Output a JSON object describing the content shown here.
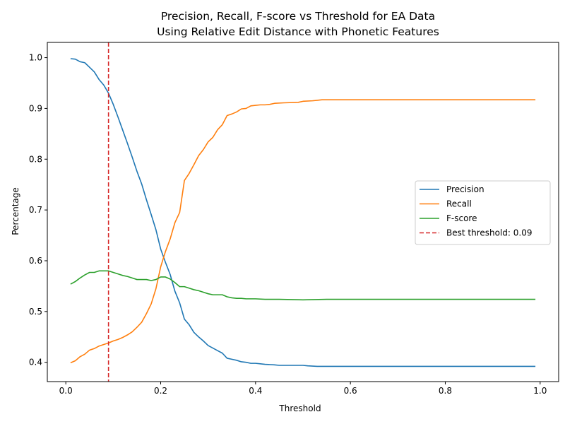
{
  "chart_data": {
    "type": "line",
    "title_line1": "Precision, Recall, F-score vs Threshold for EA Data",
    "title_line2": "Using Relative Edit Distance with Phonetic Features",
    "xlabel": "Threshold",
    "ylabel": "Percentage",
    "xlim": [
      -0.039,
      1.039
    ],
    "ylim": [
      0.362,
      1.03
    ],
    "xticks": [
      0.0,
      0.2,
      0.4,
      0.6,
      0.8,
      1.0
    ],
    "xtick_labels": [
      "0.0",
      "0.2",
      "0.4",
      "0.6",
      "0.8",
      "1.0"
    ],
    "yticks": [
      0.4,
      0.5,
      0.6,
      0.7,
      0.8,
      0.9,
      1.0
    ],
    "ytick_labels": [
      "0.4",
      "0.5",
      "0.6",
      "0.7",
      "0.8",
      "0.9",
      "1.0"
    ],
    "grid": false,
    "legend_position": "center-right",
    "series": [
      {
        "name": "Precision",
        "color": "#1f77b4",
        "points": [
          [
            0.01,
            0.998
          ],
          [
            0.02,
            0.997
          ],
          [
            0.03,
            0.992
          ],
          [
            0.04,
            0.99
          ],
          [
            0.05,
            0.981
          ],
          [
            0.06,
            0.972
          ],
          [
            0.07,
            0.957
          ],
          [
            0.08,
            0.946
          ],
          [
            0.09,
            0.93
          ],
          [
            0.1,
            0.908
          ],
          [
            0.11,
            0.883
          ],
          [
            0.12,
            0.857
          ],
          [
            0.13,
            0.831
          ],
          [
            0.14,
            0.804
          ],
          [
            0.15,
            0.776
          ],
          [
            0.16,
            0.751
          ],
          [
            0.17,
            0.72
          ],
          [
            0.18,
            0.691
          ],
          [
            0.19,
            0.661
          ],
          [
            0.2,
            0.623
          ],
          [
            0.21,
            0.597
          ],
          [
            0.22,
            0.573
          ],
          [
            0.23,
            0.54
          ],
          [
            0.24,
            0.517
          ],
          [
            0.25,
            0.485
          ],
          [
            0.26,
            0.474
          ],
          [
            0.27,
            0.459
          ],
          [
            0.28,
            0.45
          ],
          [
            0.29,
            0.442
          ],
          [
            0.3,
            0.433
          ],
          [
            0.31,
            0.428
          ],
          [
            0.32,
            0.423
          ],
          [
            0.33,
            0.418
          ],
          [
            0.34,
            0.408
          ],
          [
            0.35,
            0.406
          ],
          [
            0.36,
            0.404
          ],
          [
            0.37,
            0.401
          ],
          [
            0.38,
            0.4
          ],
          [
            0.39,
            0.398
          ],
          [
            0.4,
            0.398
          ],
          [
            0.41,
            0.397
          ],
          [
            0.42,
            0.396
          ],
          [
            0.44,
            0.395
          ],
          [
            0.45,
            0.394
          ],
          [
            0.5,
            0.394
          ],
          [
            0.51,
            0.393
          ],
          [
            0.53,
            0.392
          ],
          [
            0.6,
            0.392
          ],
          [
            0.7,
            0.392
          ],
          [
            0.8,
            0.392
          ],
          [
            0.9,
            0.392
          ],
          [
            0.99,
            0.392
          ]
        ]
      },
      {
        "name": "Recall",
        "color": "#ff7f0e",
        "points": [
          [
            0.01,
            0.399
          ],
          [
            0.02,
            0.403
          ],
          [
            0.03,
            0.411
          ],
          [
            0.04,
            0.416
          ],
          [
            0.05,
            0.424
          ],
          [
            0.06,
            0.427
          ],
          [
            0.07,
            0.432
          ],
          [
            0.08,
            0.435
          ],
          [
            0.09,
            0.438
          ],
          [
            0.1,
            0.442
          ],
          [
            0.11,
            0.445
          ],
          [
            0.12,
            0.449
          ],
          [
            0.13,
            0.454
          ],
          [
            0.14,
            0.46
          ],
          [
            0.15,
            0.469
          ],
          [
            0.16,
            0.479
          ],
          [
            0.17,
            0.496
          ],
          [
            0.18,
            0.515
          ],
          [
            0.19,
            0.545
          ],
          [
            0.2,
            0.588
          ],
          [
            0.21,
            0.618
          ],
          [
            0.22,
            0.643
          ],
          [
            0.23,
            0.675
          ],
          [
            0.24,
            0.695
          ],
          [
            0.25,
            0.758
          ],
          [
            0.26,
            0.772
          ],
          [
            0.27,
            0.789
          ],
          [
            0.28,
            0.807
          ],
          [
            0.29,
            0.819
          ],
          [
            0.3,
            0.834
          ],
          [
            0.31,
            0.843
          ],
          [
            0.32,
            0.858
          ],
          [
            0.33,
            0.868
          ],
          [
            0.34,
            0.886
          ],
          [
            0.35,
            0.889
          ],
          [
            0.36,
            0.893
          ],
          [
            0.37,
            0.899
          ],
          [
            0.38,
            0.9
          ],
          [
            0.39,
            0.905
          ],
          [
            0.4,
            0.906
          ],
          [
            0.41,
            0.907
          ],
          [
            0.42,
            0.907
          ],
          [
            0.43,
            0.908
          ],
          [
            0.44,
            0.91
          ],
          [
            0.46,
            0.911
          ],
          [
            0.49,
            0.912
          ],
          [
            0.5,
            0.914
          ],
          [
            0.52,
            0.915
          ],
          [
            0.53,
            0.916
          ],
          [
            0.54,
            0.917
          ],
          [
            0.6,
            0.917
          ],
          [
            0.7,
            0.917
          ],
          [
            0.8,
            0.917
          ],
          [
            0.9,
            0.917
          ],
          [
            0.99,
            0.917
          ]
        ]
      },
      {
        "name": "F-score",
        "color": "#2ca02c",
        "points": [
          [
            0.01,
            0.554
          ],
          [
            0.02,
            0.559
          ],
          [
            0.03,
            0.566
          ],
          [
            0.04,
            0.572
          ],
          [
            0.05,
            0.577
          ],
          [
            0.06,
            0.577
          ],
          [
            0.07,
            0.58
          ],
          [
            0.08,
            0.58
          ],
          [
            0.09,
            0.58
          ],
          [
            0.1,
            0.577
          ],
          [
            0.11,
            0.574
          ],
          [
            0.12,
            0.571
          ],
          [
            0.13,
            0.569
          ],
          [
            0.14,
            0.566
          ],
          [
            0.15,
            0.563
          ],
          [
            0.16,
            0.563
          ],
          [
            0.17,
            0.563
          ],
          [
            0.18,
            0.561
          ],
          [
            0.19,
            0.563
          ],
          [
            0.2,
            0.568
          ],
          [
            0.21,
            0.568
          ],
          [
            0.22,
            0.564
          ],
          [
            0.23,
            0.557
          ],
          [
            0.24,
            0.549
          ],
          [
            0.25,
            0.549
          ],
          [
            0.26,
            0.546
          ],
          [
            0.27,
            0.543
          ],
          [
            0.28,
            0.541
          ],
          [
            0.29,
            0.538
          ],
          [
            0.3,
            0.535
          ],
          [
            0.31,
            0.533
          ],
          [
            0.33,
            0.533
          ],
          [
            0.34,
            0.529
          ],
          [
            0.35,
            0.527
          ],
          [
            0.36,
            0.526
          ],
          [
            0.37,
            0.526
          ],
          [
            0.38,
            0.525
          ],
          [
            0.4,
            0.525
          ],
          [
            0.42,
            0.524
          ],
          [
            0.45,
            0.524
          ],
          [
            0.5,
            0.523
          ],
          [
            0.55,
            0.524
          ],
          [
            0.6,
            0.524
          ],
          [
            0.7,
            0.524
          ],
          [
            0.8,
            0.524
          ],
          [
            0.9,
            0.524
          ],
          [
            0.99,
            0.524
          ]
        ]
      }
    ],
    "threshold_line": {
      "name": "Best threshold: 0.09",
      "x": 0.09,
      "color": "#d62728",
      "style": "dashed"
    }
  }
}
